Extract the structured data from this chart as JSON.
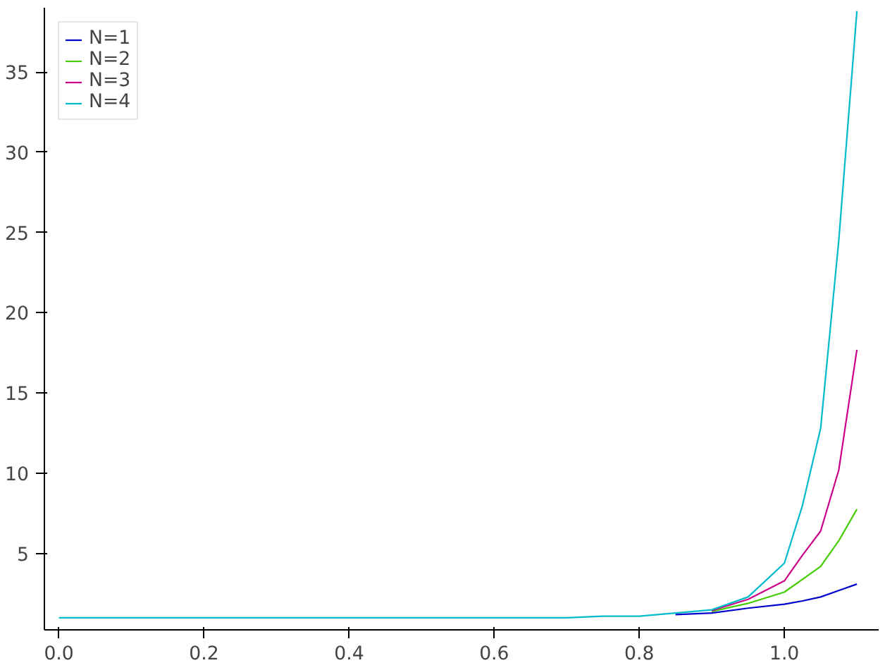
{
  "chart_data": {
    "type": "line",
    "x": [
      0,
      0.2,
      0.4,
      0.6,
      0.7,
      0.75,
      0.8,
      0.85,
      0.9,
      0.95,
      1.0,
      1.025,
      1.05,
      1.075,
      1.1
    ],
    "xlim": [
      -0.02,
      1.13
    ],
    "ylim": [
      0.25,
      39
    ],
    "xticks": [
      {
        "value": 0,
        "label": "0.0"
      },
      0.2,
      0.4,
      0.6,
      0.8,
      {
        "value": 1,
        "label": "1.0"
      }
    ],
    "yticks": [
      5,
      10,
      15,
      20,
      25,
      30,
      35
    ],
    "legend": "top left",
    "grid": false,
    "series": [
      {
        "name": "N=1",
        "color": "#0000cc",
        "values": [
          null,
          null,
          null,
          null,
          null,
          null,
          null,
          1.2,
          1.3,
          1.6,
          1.85,
          2.05,
          2.3,
          2.7,
          3.1
        ]
      },
      {
        "name": "N=2",
        "color": "#44cc00",
        "values": [
          null,
          null,
          null,
          null,
          null,
          null,
          null,
          null,
          1.4,
          1.9,
          2.6,
          3.4,
          4.2,
          5.8,
          7.76
        ]
      },
      {
        "name": "N=3",
        "color": "#cc0088",
        "values": [
          null,
          null,
          null,
          null,
          null,
          null,
          null,
          null,
          1.45,
          2.15,
          3.3,
          4.9,
          6.4,
          10.2,
          17.7
        ]
      },
      {
        "name": "N=4",
        "color": "#00bbcc",
        "values": [
          1,
          1,
          1,
          1,
          1.0,
          1.1,
          1.1,
          1.3,
          1.5,
          2.3,
          4.4,
          8.0,
          12.8,
          24.5,
          38.8
        ]
      }
    ]
  }
}
